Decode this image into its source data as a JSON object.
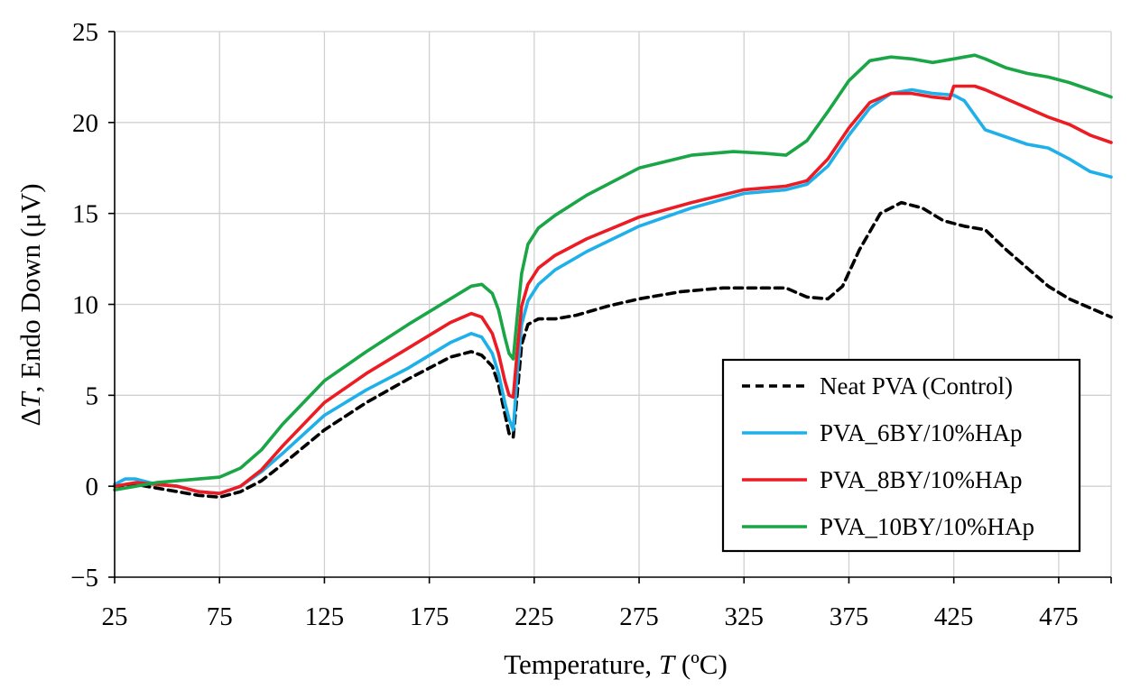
{
  "chart_data": {
    "type": "line",
    "title": "",
    "xlabel_prefix": "Temperature, ",
    "xlabel_symbol": "T",
    "xlabel_suffix": " (ºC)",
    "ylabel_prefix": "Δ",
    "ylabel_symbol": "T",
    "ylabel_suffix": ", Endo Down (μV)",
    "xlim": [
      25,
      500
    ],
    "ylim": [
      -5,
      25
    ],
    "xticks": [
      25,
      75,
      125,
      175,
      225,
      275,
      325,
      375,
      425,
      475
    ],
    "yticks": [
      -5,
      0,
      5,
      10,
      15,
      20,
      25
    ],
    "ytick_labels": [
      "−5",
      "0",
      "5",
      "10",
      "15",
      "20",
      "25"
    ],
    "grid": true,
    "legend_position": "lower-right",
    "series": [
      {
        "name": "Neat PVA (Control)",
        "color": "#000000",
        "dashed": true,
        "x": [
          25,
          35,
          45,
          55,
          65,
          75,
          85,
          95,
          105,
          125,
          145,
          165,
          185,
          195,
          200,
          205,
          208,
          211,
          213,
          215,
          217,
          219,
          222,
          227,
          235,
          245,
          260,
          275,
          295,
          315,
          330,
          345,
          355,
          365,
          372,
          380,
          390,
          400,
          410,
          420,
          430,
          440,
          450,
          460,
          470,
          480,
          490,
          500
        ],
        "y": [
          0.0,
          0.1,
          -0.1,
          -0.3,
          -0.5,
          -0.6,
          -0.3,
          0.3,
          1.2,
          3.1,
          4.6,
          5.9,
          7.1,
          7.4,
          7.2,
          6.6,
          5.6,
          4.0,
          2.9,
          2.7,
          5.2,
          7.8,
          8.9,
          9.2,
          9.2,
          9.4,
          9.9,
          10.3,
          10.7,
          10.9,
          10.9,
          10.9,
          10.4,
          10.3,
          11.0,
          13.0,
          15.0,
          15.6,
          15.3,
          14.6,
          14.3,
          14.1,
          13.0,
          12.0,
          11.0,
          10.3,
          9.8,
          9.3
        ]
      },
      {
        "name": "PVA_6BY/10%HAp",
        "color": "#1fb0ea",
        "dashed": false,
        "x": [
          25,
          30,
          35,
          45,
          55,
          65,
          75,
          85,
          95,
          105,
          125,
          145,
          165,
          185,
          195,
          200,
          205,
          208,
          211,
          213,
          215,
          217,
          219,
          222,
          227,
          235,
          250,
          275,
          300,
          325,
          345,
          355,
          365,
          375,
          385,
          395,
          405,
          415,
          425,
          430,
          435,
          440,
          450,
          460,
          470,
          480,
          490,
          500
        ],
        "y": [
          0.1,
          0.4,
          0.4,
          0.1,
          0.0,
          -0.3,
          -0.4,
          0.0,
          0.8,
          1.8,
          3.9,
          5.3,
          6.5,
          7.9,
          8.4,
          8.2,
          7.3,
          6.2,
          4.6,
          3.7,
          3.1,
          6.3,
          8.9,
          10.2,
          11.1,
          11.9,
          12.9,
          14.3,
          15.3,
          16.1,
          16.3,
          16.6,
          17.6,
          19.3,
          20.8,
          21.6,
          21.8,
          21.6,
          21.5,
          21.2,
          20.4,
          19.6,
          19.2,
          18.8,
          18.6,
          18.0,
          17.3,
          17.0
        ]
      },
      {
        "name": "PVA_8BY/10%HAp",
        "color": "#ec1c24",
        "dashed": false,
        "x": [
          25,
          35,
          45,
          55,
          65,
          75,
          85,
          95,
          105,
          125,
          145,
          165,
          185,
          195,
          200,
          205,
          208,
          211,
          213,
          215,
          217,
          219,
          222,
          227,
          235,
          250,
          275,
          300,
          325,
          345,
          355,
          365,
          375,
          385,
          395,
          405,
          415,
          423,
          425,
          430,
          435,
          440,
          450,
          460,
          470,
          480,
          490,
          500
        ],
        "y": [
          0.0,
          0.2,
          0.1,
          0.0,
          -0.3,
          -0.4,
          0.0,
          0.9,
          2.2,
          4.6,
          6.2,
          7.6,
          9.0,
          9.5,
          9.3,
          8.4,
          7.3,
          5.8,
          5.0,
          4.9,
          7.5,
          9.9,
          11.1,
          12.0,
          12.7,
          13.6,
          14.8,
          15.6,
          16.3,
          16.5,
          16.8,
          18.0,
          19.7,
          21.1,
          21.6,
          21.6,
          21.4,
          21.3,
          22.0,
          22.0,
          22.0,
          21.8,
          21.3,
          20.8,
          20.3,
          19.9,
          19.3,
          18.9
        ]
      },
      {
        "name": "PVA_10BY/10%HAp",
        "color": "#1aa646",
        "dashed": false,
        "x": [
          25,
          35,
          45,
          55,
          65,
          75,
          85,
          95,
          105,
          125,
          145,
          165,
          185,
          195,
          200,
          205,
          208,
          211,
          213,
          215,
          217,
          219,
          222,
          227,
          235,
          250,
          275,
          300,
          320,
          335,
          345,
          355,
          365,
          375,
          385,
          395,
          405,
          415,
          425,
          430,
          435,
          440,
          450,
          460,
          470,
          480,
          490,
          500
        ],
        "y": [
          -0.2,
          0.0,
          0.2,
          0.3,
          0.4,
          0.5,
          1.0,
          2.0,
          3.4,
          5.8,
          7.4,
          8.9,
          10.3,
          11.0,
          11.1,
          10.6,
          9.7,
          8.2,
          7.3,
          7.0,
          9.4,
          11.7,
          13.3,
          14.2,
          14.9,
          16.0,
          17.5,
          18.2,
          18.4,
          18.3,
          18.2,
          19.0,
          20.6,
          22.3,
          23.4,
          23.6,
          23.5,
          23.3,
          23.5,
          23.6,
          23.7,
          23.5,
          23.0,
          22.7,
          22.5,
          22.2,
          21.8,
          21.4
        ]
      }
    ]
  }
}
